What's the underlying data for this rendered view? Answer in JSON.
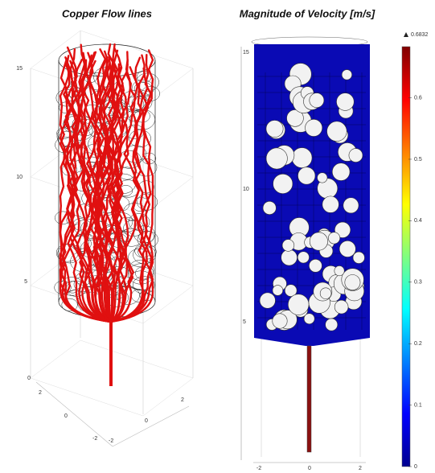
{
  "panels": [
    {
      "title": "Copper Flow lines",
      "z_ticks": [
        "15",
        "10",
        "5",
        "0"
      ],
      "x_ticks": [
        "2",
        "0",
        "-2"
      ],
      "y_ticks": [
        "-2",
        "0",
        "2"
      ]
    },
    {
      "title": "Magnitude of Velocity [m/s]",
      "z_ticks": [
        "15",
        "10",
        "5"
      ],
      "x_ticks": [
        "-2",
        "0",
        "2"
      ]
    }
  ],
  "colorbar": {
    "max": 0.6832,
    "min": 0,
    "ticks": [
      0.6,
      0.5,
      0.4,
      0.3,
      0.2,
      0.1,
      0
    ]
  }
}
